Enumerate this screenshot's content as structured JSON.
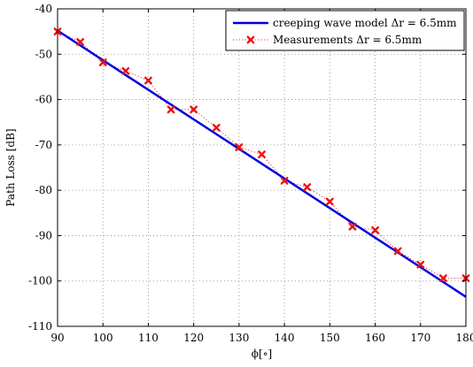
{
  "chart_data": {
    "type": "line",
    "title": "",
    "xlabel": "ϕ[∘]",
    "ylabel": "Path Loss [dB]",
    "xlim": [
      90,
      180
    ],
    "ylim": [
      -110,
      -40
    ],
    "xticks": [
      90,
      100,
      110,
      120,
      130,
      140,
      150,
      160,
      170,
      180
    ],
    "yticks": [
      -40,
      -50,
      -60,
      -70,
      -80,
      -90,
      -100,
      -110
    ],
    "grid": true,
    "legend_position": "top-right",
    "series": [
      {
        "name": "creeping wave model Δr = 6.5mm",
        "style": "solid-line",
        "color": "#0000dd",
        "x": [
          90,
          180
        ],
        "y": [
          -44.8,
          -103.5
        ]
      },
      {
        "name": "Measurements Δr = 6.5mm",
        "style": "dotted-line-x-markers",
        "color": "#ee1111",
        "x": [
          90,
          95,
          100,
          105,
          110,
          115,
          120,
          125,
          130,
          135,
          140,
          145,
          150,
          155,
          160,
          165,
          170,
          175,
          180
        ],
        "y": [
          -45.0,
          -47.3,
          -51.8,
          -53.7,
          -55.8,
          -62.2,
          -62.2,
          -66.2,
          -70.5,
          -72.1,
          -77.9,
          -79.3,
          -82.5,
          -88.0,
          -88.8,
          -93.4,
          -96.4,
          -99.4,
          -99.4
        ]
      }
    ]
  }
}
